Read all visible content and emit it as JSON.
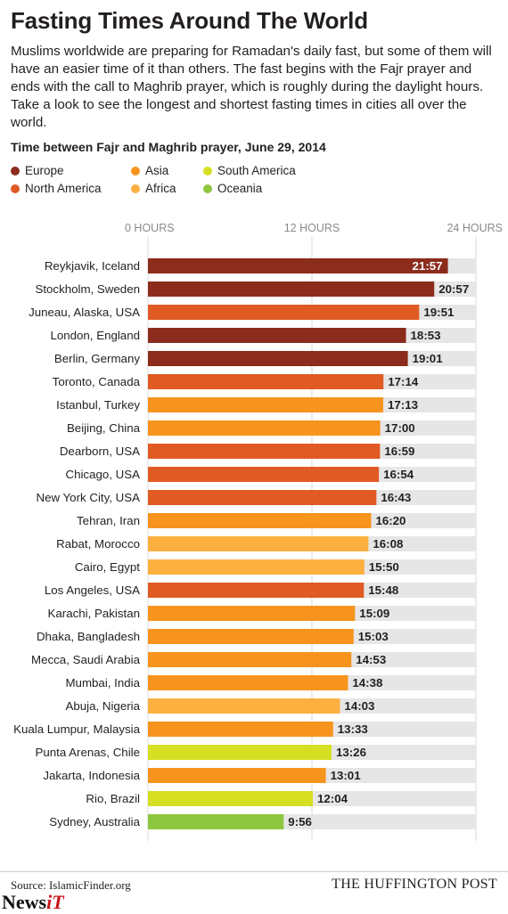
{
  "header": {
    "title": "Fasting Times Around The World",
    "intro": "Muslims worldwide are preparing for Ramadan's daily fast, but some of them will have an easier time of it than others. The fast begins with the Fajr prayer and ends with the call to Maghrib prayer, which is roughly during the daylight hours. Take a look to see the longest and shortest fasting times in cities all over the world.",
    "subtitle": "Time between Fajr and Maghrib prayer, June 29, 2014"
  },
  "legend": [
    {
      "label": "Europe",
      "color": "#8b2c1c"
    },
    {
      "label": "Asia",
      "color": "#f7941d"
    },
    {
      "label": "South America",
      "color": "#d7df23"
    },
    {
      "label": "North America",
      "color": "#e05a24"
    },
    {
      "label": "Africa",
      "color": "#fbb040"
    },
    {
      "label": "Oceania",
      "color": "#8dc63f"
    }
  ],
  "chart_data": {
    "type": "bar",
    "orientation": "horizontal",
    "xlim": [
      0,
      24
    ],
    "x_ticks": [
      {
        "value": 0,
        "label": "0 HOURS"
      },
      {
        "value": 12,
        "label": "12 HOURS"
      },
      {
        "value": 24,
        "label": "24 HOURS"
      }
    ],
    "categories": [
      "Reykjavik, Iceland",
      "Stockholm, Sweden",
      "Juneau, Alaska, USA",
      "London, England",
      "Berlin, Germany",
      "Toronto, Canada",
      "Istanbul, Turkey",
      "Beijing, China",
      "Dearborn, USA",
      "Chicago, USA",
      "New York City, USA",
      "Tehran, Iran",
      "Rabat, Morocco",
      "Cairo, Egypt",
      "Los Angeles, USA",
      "Karachi, Pakistan",
      "Dhaka, Bangladesh",
      "Mecca, Saudi Arabia",
      "Mumbai, India",
      "Abuja, Nigeria",
      "Kuala Lumpur, Malaysia",
      "Punta Arenas, Chile",
      "Jakarta, Indonesia",
      "Rio, Brazil",
      "Sydney, Australia"
    ],
    "labels": [
      "21:57",
      "20:57",
      "19:51",
      "18:53",
      "19:01",
      "17:14",
      "17:13",
      "17:00",
      "16:59",
      "16:54",
      "16:43",
      "16:20",
      "16:08",
      "15:50",
      "15:48",
      "15:09",
      "15:03",
      "14:53",
      "14:38",
      "14:03",
      "13:33",
      "13:26",
      "13:01",
      "12:04",
      "9:56"
    ],
    "region": [
      "Europe",
      "Europe",
      "North America",
      "Europe",
      "Europe",
      "North America",
      "Asia",
      "Asia",
      "North America",
      "North America",
      "North America",
      "Asia",
      "Africa",
      "Africa",
      "North America",
      "Asia",
      "Asia",
      "Asia",
      "Asia",
      "Africa",
      "Asia",
      "South America",
      "Asia",
      "South America",
      "Oceania"
    ]
  },
  "footer": {
    "source": "Source: IslamicFinder.org",
    "brand": "THE HUFFINGTON POST",
    "watermark_a": "News",
    "watermark_b": "iT"
  }
}
